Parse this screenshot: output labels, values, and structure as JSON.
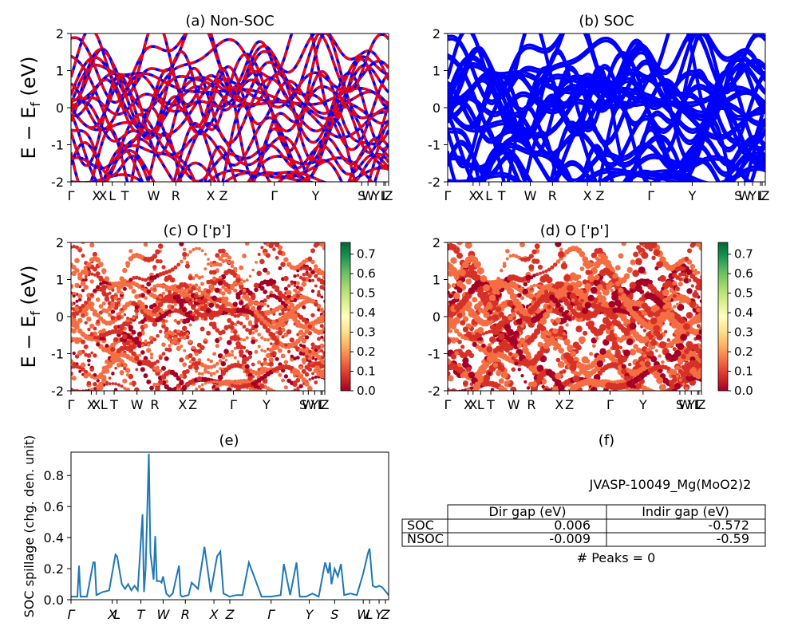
{
  "figure": {
    "ylabel_bands": "E − E_f (eV)",
    "ylabel_spillage": "SOC spillage (chg. den. unit)"
  },
  "colors": {
    "nonsoc": "#ff0000",
    "soc": "#0000ff",
    "spillage": "#1f77b4"
  },
  "panels": {
    "a": {
      "title": "(a) Non-SOC"
    },
    "b": {
      "title": "(b) SOC"
    },
    "c": {
      "title": "(c)  O ['p']"
    },
    "d": {
      "title": "(d) O ['p']"
    },
    "e": {
      "title": "(e)"
    },
    "f": {
      "title": "(f)"
    }
  },
  "kpath_top": [
    "Γ",
    "X",
    "X",
    "L",
    "T",
    "W",
    "R",
    "X",
    "Z",
    "Γ",
    "Y",
    "S",
    "W",
    "Y",
    "L",
    "L",
    "Z"
  ],
  "kpath_mid": [
    "Γ",
    "X",
    "X",
    "L",
    "T",
    "W",
    "R",
    "X",
    "Z",
    "Γ",
    "Y",
    "S",
    "W",
    "Y",
    "L",
    "L",
    "Z"
  ],
  "kpath_spill": [
    "Γ",
    "X",
    "L",
    "T",
    "W",
    "R",
    "X",
    "Z",
    "Γ",
    "Y",
    "S",
    "W",
    "L",
    "Y",
    "Z"
  ],
  "colorbar": {
    "ticks": [
      "0.0",
      "0.1",
      "0.2",
      "0.3",
      "0.4",
      "0.5",
      "0.6",
      "0.7"
    ],
    "range": [
      0,
      0.76
    ]
  },
  "table": {
    "material": "JVASP-10049_Mg(MoO2)2",
    "headers": [
      "",
      "Dir gap (eV)",
      "Indir gap (eV)"
    ],
    "rows": [
      {
        "label": "SOC",
        "dir": "0.006",
        "indir": "-0.572"
      },
      {
        "label": "NSOC",
        "dir": "-0.009",
        "indir": "-0.59"
      }
    ],
    "peaks": "# Peaks = 0"
  },
  "chart_data": [
    {
      "type": "line",
      "title": "(a) Non-SOC",
      "ylabel": "E − E_f (eV)",
      "ylim": [
        -2,
        2
      ],
      "yticks": [
        -2,
        -1,
        0,
        1,
        2
      ],
      "xlim": [
        0,
        1
      ],
      "xticks": [
        0.0,
        0.08,
        0.1,
        0.13,
        0.17,
        0.26,
        0.33,
        0.44,
        0.48,
        0.64,
        0.77,
        0.915,
        0.935,
        0.96,
        0.985,
        0.99,
        1.0
      ],
      "xticklabels": [
        "Γ",
        "X",
        "X",
        "L",
        "T",
        "W",
        "R",
        "X",
        "Z",
        "Γ",
        "Y",
        "S",
        "W",
        "Y",
        "L",
        "L",
        "Z"
      ],
      "series": [
        {
          "style": "solid",
          "color": "#0000ff"
        },
        {
          "style": "dashed",
          "color": "#ff0000"
        }
      ]
    },
    {
      "type": "line",
      "title": "(b) SOC",
      "ylim": [
        -2,
        2
      ],
      "yticks": [
        -2,
        -1,
        0,
        1,
        2
      ],
      "xlim": [
        0,
        1
      ],
      "xticks": [
        0.0,
        0.08,
        0.1,
        0.13,
        0.17,
        0.26,
        0.33,
        0.44,
        0.48,
        0.64,
        0.77,
        0.915,
        0.935,
        0.96,
        0.985,
        0.99,
        1.0
      ],
      "xticklabels": [
        "Γ",
        "X",
        "X",
        "L",
        "T",
        "W",
        "R",
        "X",
        "Z",
        "Γ",
        "Y",
        "S",
        "W",
        "Y",
        "L",
        "L",
        "Z"
      ],
      "series": [
        {
          "style": "solid",
          "color": "#0000ff"
        }
      ]
    },
    {
      "type": "scatter",
      "title": "(c)  O ['p']",
      "ylabel": "E − E_f (eV)",
      "ylim": [
        -2,
        2
      ],
      "yticks": [
        -2,
        -1,
        0,
        1,
        2
      ],
      "colormap": "RdYlGn",
      "colorbar_range": [
        0,
        0.76
      ]
    },
    {
      "type": "scatter",
      "title": "(d) O ['p']",
      "ylim": [
        -2,
        2
      ],
      "yticks": [
        -2,
        -1,
        0,
        1,
        2
      ],
      "colormap": "RdYlGn",
      "colorbar_range": [
        0,
        0.76
      ]
    },
    {
      "type": "line",
      "title": "(e)",
      "ylabel": "SOC spillage (chg. den. unit)",
      "ylim": [
        0,
        0.95
      ],
      "yticks": [
        0.0,
        0.2,
        0.4,
        0.6,
        0.8
      ],
      "xlim": [
        0,
        1
      ],
      "xticks": [
        0.0,
        0.13,
        0.145,
        0.22,
        0.29,
        0.36,
        0.45,
        0.5,
        0.63,
        0.75,
        0.83,
        0.92,
        0.94,
        0.97,
        0.99
      ],
      "xticklabels": [
        "Γ",
        "X",
        "L",
        "T",
        "W",
        "R",
        "X",
        "Z",
        "Γ",
        "Y",
        "S",
        "W",
        "L",
        "Y",
        "Z"
      ],
      "x": [
        0.0,
        0.02,
        0.025,
        0.03,
        0.05,
        0.07,
        0.075,
        0.08,
        0.09,
        0.1,
        0.12,
        0.14,
        0.145,
        0.16,
        0.17,
        0.18,
        0.19,
        0.2,
        0.21,
        0.225,
        0.23,
        0.235,
        0.245,
        0.25,
        0.26,
        0.265,
        0.27,
        0.28,
        0.285,
        0.29,
        0.3,
        0.31,
        0.32,
        0.34,
        0.345,
        0.35,
        0.37,
        0.38,
        0.4,
        0.42,
        0.43,
        0.44,
        0.46,
        0.47,
        0.48,
        0.5,
        0.52,
        0.53,
        0.54,
        0.56,
        0.6,
        0.63,
        0.66,
        0.67,
        0.69,
        0.71,
        0.72,
        0.74,
        0.76,
        0.78,
        0.8,
        0.81,
        0.815,
        0.82,
        0.83,
        0.84,
        0.85,
        0.86,
        0.88,
        0.9,
        0.92,
        0.935,
        0.94,
        0.95,
        0.96,
        0.97,
        0.98,
        1.0
      ],
      "y": [
        0.02,
        0.02,
        0.22,
        0.02,
        0.02,
        0.24,
        0.24,
        0.03,
        0.04,
        0.05,
        0.06,
        0.29,
        0.28,
        0.1,
        0.07,
        0.1,
        0.06,
        0.09,
        0.06,
        0.55,
        0.05,
        0.2,
        0.94,
        0.3,
        0.13,
        0.41,
        0.12,
        0.12,
        0.11,
        0.15,
        0.04,
        0.02,
        0.04,
        0.22,
        0.03,
        0.02,
        0.03,
        0.11,
        0.07,
        0.34,
        0.2,
        0.05,
        0.28,
        0.31,
        0.04,
        0.02,
        0.03,
        0.03,
        0.03,
        0.24,
        0.02,
        0.02,
        0.03,
        0.23,
        0.03,
        0.24,
        0.02,
        0.02,
        0.04,
        0.02,
        0.24,
        0.17,
        0.24,
        0.1,
        0.2,
        0.15,
        0.23,
        0.03,
        0.04,
        0.03,
        0.17,
        0.3,
        0.33,
        0.09,
        0.08,
        0.09,
        0.08,
        0.03
      ]
    },
    {
      "type": "table",
      "title": "(f)",
      "columns": [
        "",
        "Dir gap (eV)",
        "Indir gap (eV)"
      ],
      "rows": [
        [
          "SOC",
          "0.006",
          "-0.572"
        ],
        [
          "NSOC",
          "-0.009",
          "-0.59"
        ]
      ]
    }
  ]
}
